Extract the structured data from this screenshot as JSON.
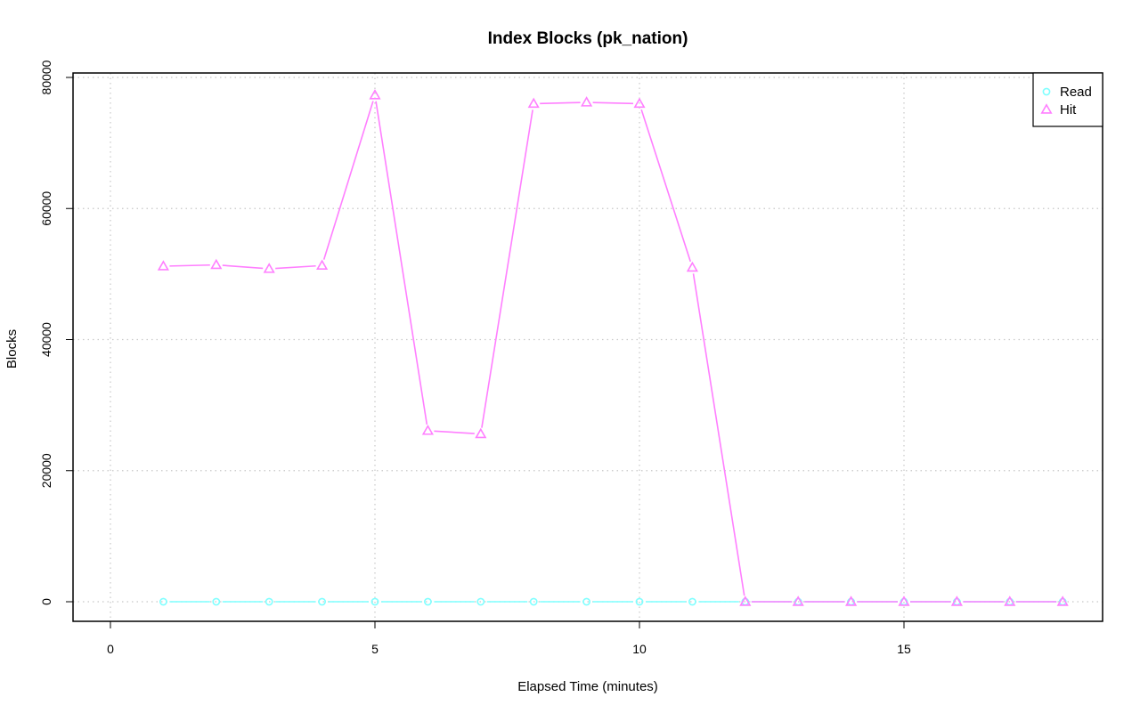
{
  "chart_data": {
    "type": "line",
    "title": "Index Blocks (pk_nation)",
    "xlabel": "Elapsed Time (minutes)",
    "ylabel": "Blocks",
    "xlim": [
      0,
      18
    ],
    "ylim": [
      0,
      80000
    ],
    "x_ticks": [
      0,
      5,
      10,
      15
    ],
    "y_ticks": [
      0,
      20000,
      40000,
      60000,
      80000
    ],
    "grid": true,
    "legend_position": "top-right",
    "x": [
      1,
      2,
      3,
      4,
      5,
      6,
      7,
      8,
      9,
      10,
      11,
      12,
      13,
      14,
      15,
      16,
      17,
      18
    ],
    "series": [
      {
        "name": "Read",
        "color": "#7FFFFF",
        "marker": "circle",
        "values": [
          0,
          0,
          0,
          0,
          0,
          0,
          0,
          0,
          0,
          0,
          0,
          0,
          0,
          0,
          0,
          0,
          0,
          0
        ]
      },
      {
        "name": "Hit",
        "color": "#FF7FFF",
        "marker": "triangle",
        "values": [
          51200,
          51400,
          50800,
          51300,
          77300,
          26100,
          25600,
          76000,
          76200,
          76000,
          51000,
          0,
          0,
          0,
          0,
          0,
          0,
          0
        ]
      }
    ]
  }
}
